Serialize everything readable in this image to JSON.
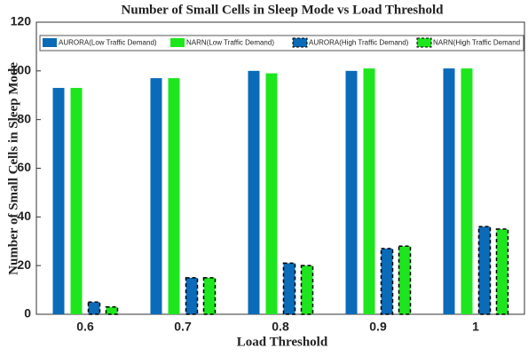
{
  "chart_data": {
    "type": "bar",
    "title": "Number of Small Cells in Sleep Mode vs Load Threshold",
    "x_label": "Load Threshold",
    "y_label": "Number of Small Cells in Sleep Mode",
    "categories": [
      "0.6",
      "0.7",
      "0.8",
      "0.9",
      "1"
    ],
    "series": [
      {
        "name": "AURORA(Low Traffic Demand)",
        "color": "#0a6bb8",
        "dashed": false,
        "values": [
          93,
          97,
          100,
          100,
          101
        ]
      },
      {
        "name": "NARN(Low Traffic Demand)",
        "color": "#1ee61e",
        "dashed": false,
        "values": [
          93,
          97,
          99,
          101,
          101
        ]
      },
      {
        "name": "AURORA(High Traffic Demand)",
        "color": "#0a6bb8",
        "dashed": true,
        "values": [
          5,
          15,
          21,
          27,
          36
        ]
      },
      {
        "name": "NARN(High Traffic Demand",
        "color": "#1ee61e",
        "dashed": true,
        "values": [
          3,
          15,
          20,
          28,
          35
        ]
      }
    ],
    "ylim": [
      0,
      120
    ],
    "yticks": [
      0,
      20,
      40,
      60,
      80,
      100,
      120
    ],
    "grid": false
  }
}
